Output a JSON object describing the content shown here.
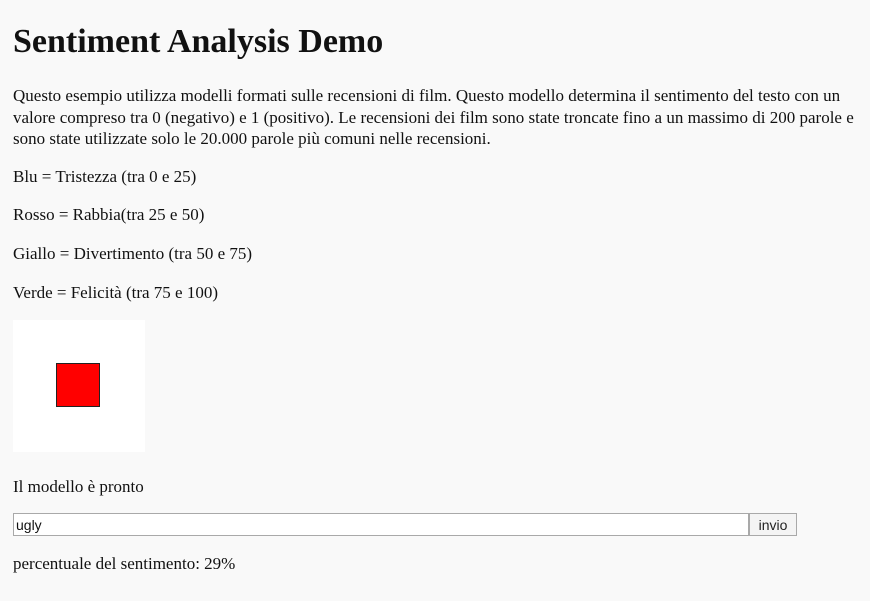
{
  "title": "Sentiment Analysis Demo",
  "intro": "Questo esempio utilizza modelli formati sulle recensioni di film. Questo modello determina il sentimento del testo con un valore compreso tra 0 (negativo) e 1 (positivo). Le recensioni dei film sono state troncate fino a un massimo di 200 parole e sono state utilizzate solo le 20.000 parole più comuni nelle recensioni.",
  "legend": [
    "Blu = Tristezza (tra 0 e 25)",
    "Rosso = Rabbia(tra 25 e 50)",
    "Giallo = Divertimento (tra 50 e 75)",
    "Verde = Felicità (tra 75 e 100)"
  ],
  "indicator": {
    "color": "#ff0000",
    "shape_icon": "red-square"
  },
  "status": "Il modello è pronto",
  "input": {
    "value": "ugly",
    "placeholder": ""
  },
  "submit_label": "invio",
  "result": "percentuale del sentimento: 29%"
}
